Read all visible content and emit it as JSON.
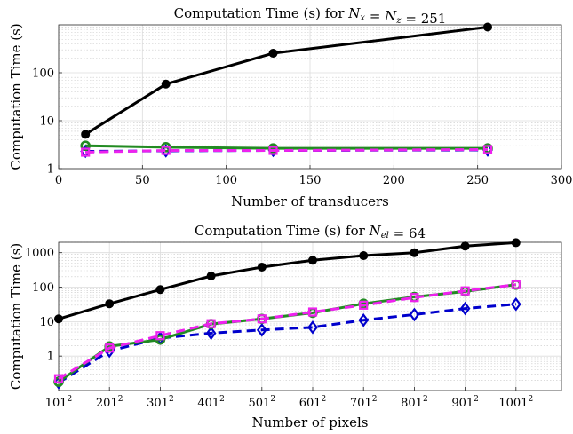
{
  "chart_data": [
    {
      "type": "line",
      "title_prefix": "Computation Time (s) for ",
      "title_math": "N_x = N_z = 251",
      "xlabel": "Number of transducers",
      "ylabel": "Computation Time (s)",
      "xlim": [
        0,
        300
      ],
      "ylim": [
        1,
        1000
      ],
      "yscale": "log",
      "grid": true,
      "x_ticks": [
        "0",
        "50",
        "100",
        "150",
        "200",
        "250",
        "300"
      ],
      "y_ticks": [
        "1",
        "10",
        "100"
      ],
      "series": [
        {
          "color": "#000000",
          "marker": "circle",
          "dash": "solid",
          "x": [
            16,
            64,
            128,
            256
          ],
          "y": [
            5.2,
            58,
            255,
            900
          ]
        },
        {
          "color": "#0000cc",
          "marker": "diamond",
          "dash": "dashed",
          "x": [
            16,
            64,
            128,
            256
          ],
          "y": [
            2.3,
            2.35,
            2.4,
            2.45
          ]
        },
        {
          "color": "#228b22",
          "marker": "circle",
          "dash": "solid",
          "x": [
            16,
            64,
            128,
            256
          ],
          "y": [
            3.0,
            2.8,
            2.65,
            2.65
          ]
        },
        {
          "color": "#ee22ee",
          "marker": "square",
          "dash": "dashed",
          "x": [
            16,
            64,
            128,
            256
          ],
          "y": [
            2.2,
            2.4,
            2.4,
            2.5
          ]
        }
      ]
    },
    {
      "type": "line",
      "title_prefix": "Computation Time (s) for ",
      "title_math": "N_el = 64",
      "xlabel": "Number of pixels",
      "ylabel": "Computation Time (s)",
      "yscale": "log",
      "ylim": [
        0.1,
        2000
      ],
      "grid": true,
      "categories": [
        "101",
        "201",
        "301",
        "401",
        "501",
        "601",
        "701",
        "801",
        "901",
        "1001"
      ],
      "category_exponent": "2",
      "y_ticks": [
        "1",
        "10",
        "100",
        "1000"
      ],
      "series": [
        {
          "color": "#000000",
          "marker": "circle",
          "dash": "solid",
          "y": [
            12,
            33,
            85,
            210,
            380,
            600,
            820,
            1000,
            1550,
            1950
          ]
        },
        {
          "color": "#0000cc",
          "marker": "diamond",
          "dash": "dashed",
          "y": [
            0.17,
            1.4,
            3.3,
            4.6,
            5.7,
            6.8,
            11,
            16,
            24,
            32
          ]
        },
        {
          "color": "#228b22",
          "marker": "circle",
          "dash": "solid",
          "y": [
            0.18,
            1.9,
            3.0,
            8.5,
            12,
            18,
            33,
            52,
            75,
            118
          ]
        },
        {
          "color": "#ee22ee",
          "marker": "square",
          "dash": "dashed",
          "y": [
            0.22,
            1.7,
            3.9,
            8.7,
            12,
            19,
            30,
            50,
            78,
            118
          ]
        }
      ]
    }
  ]
}
